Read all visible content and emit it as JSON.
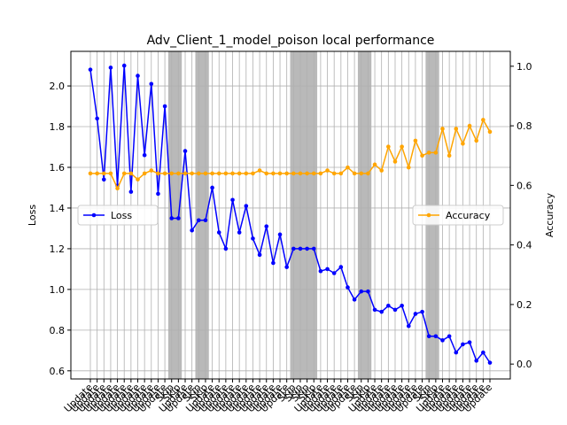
{
  "chart_data": {
    "type": "line",
    "title": "Adv_Client_1_model_poison local performance",
    "ylabel": "Loss",
    "y2label": "Accuracy",
    "categories": [
      "Update",
      "Update",
      "Update",
      "Update",
      "Update",
      "Update",
      "Update",
      "Update",
      "Update",
      "Update",
      "Update",
      "Update",
      "Skip",
      "Skip",
      "Update",
      "Update",
      "Skip",
      "Skip",
      "Update",
      "Update",
      "Update",
      "Update",
      "Update",
      "Update",
      "Update",
      "Update",
      "Update",
      "Update",
      "Update",
      "Update",
      "Skip",
      "Skip",
      "Skip",
      "Skip",
      "Update",
      "Update",
      "Update",
      "Update",
      "Update",
      "Update",
      "Skip",
      "Skip",
      "Update",
      "Update",
      "Update",
      "Update",
      "Update",
      "Update",
      "Update",
      "Update",
      "Skip",
      "Skip",
      "Update",
      "Update",
      "Update",
      "Update",
      "Update",
      "Update",
      "Update",
      "Update"
    ],
    "series": [
      {
        "name": "Loss",
        "color": "#0000ff",
        "axis": "y",
        "legend": "center left",
        "values": [
          2.08,
          1.84,
          1.54,
          2.09,
          1.51,
          2.1,
          1.48,
          2.05,
          1.66,
          2.01,
          1.47,
          1.9,
          1.35,
          1.35,
          1.68,
          1.29,
          1.34,
          1.34,
          1.5,
          1.28,
          1.2,
          1.44,
          1.28,
          1.41,
          1.25,
          1.17,
          1.31,
          1.13,
          1.27,
          1.11,
          1.2,
          1.2,
          1.2,
          1.2,
          1.09,
          1.1,
          1.08,
          1.11,
          1.01,
          0.95,
          0.99,
          0.99,
          0.9,
          0.89,
          0.92,
          0.9,
          0.92,
          0.82,
          0.88,
          0.89,
          0.77,
          0.77,
          0.75,
          0.77,
          0.69,
          0.73,
          0.74,
          0.65,
          0.69,
          0.64
        ]
      },
      {
        "name": "Accuracy",
        "color": "#ffa500",
        "axis": "y2",
        "legend": "center right",
        "values": [
          0.64,
          0.64,
          0.64,
          0.64,
          0.59,
          0.64,
          0.64,
          0.62,
          0.64,
          0.65,
          0.64,
          0.64,
          0.64,
          0.64,
          0.64,
          0.64,
          0.64,
          0.64,
          0.64,
          0.64,
          0.64,
          0.64,
          0.64,
          0.64,
          0.64,
          0.65,
          0.64,
          0.64,
          0.64,
          0.64,
          0.64,
          0.64,
          0.64,
          0.64,
          0.64,
          0.65,
          0.64,
          0.64,
          0.66,
          0.64,
          0.64,
          0.64,
          0.67,
          0.65,
          0.73,
          0.68,
          0.73,
          0.66,
          0.75,
          0.7,
          0.71,
          0.71,
          0.79,
          0.7,
          0.79,
          0.74,
          0.8,
          0.75,
          0.82,
          0.78
        ]
      }
    ],
    "ylim": [
      0.56,
      2.17
    ],
    "yticks": [
      0.6,
      0.8,
      {
        "value": 1,
        "label": "1.0"
      },
      1.2,
      1.4,
      1.6,
      1.8,
      {
        "value": 2,
        "label": "2.0"
      }
    ],
    "y2lim": [
      -0.05,
      1.05
    ],
    "y2ticks": [
      {
        "value": 0,
        "label": "0.0"
      },
      0.2,
      0.4,
      0.6,
      0.8,
      {
        "value": 1,
        "label": "1.0"
      }
    ],
    "grid": true
  }
}
